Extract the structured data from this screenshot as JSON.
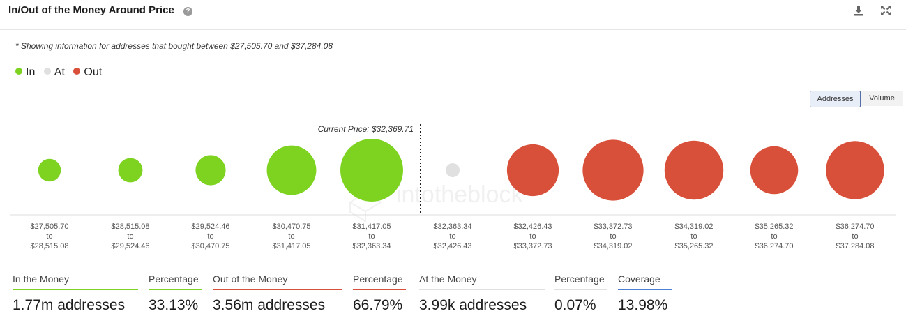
{
  "header": {
    "title": "In/Out of the Money Around Price",
    "help_icon": "question-circle-icon",
    "download_icon": "download-icon",
    "expand_icon": "expand-icon"
  },
  "note": "* Showing information for addresses that bought between $27,505.70 and $37,284.08",
  "legend": [
    {
      "label": "In",
      "color": "#7ed321"
    },
    {
      "label": "At",
      "color": "#e0e0e0"
    },
    {
      "label": "Out",
      "color": "#d9503a"
    }
  ],
  "toggle": {
    "addresses_label": "Addresses",
    "volume_label": "Volume",
    "selected": "Addresses"
  },
  "chart_data": {
    "type": "bubble",
    "current_price_label": "Current Price: $32,369.71",
    "current_price": 32369.71,
    "watermark": "intotheblock",
    "size_measure": "addresses (relative bubble size, estimated)",
    "buckets": [
      {
        "from": "$27,505.70",
        "to": "$28,515.08",
        "status": "In",
        "size": 0.13
      },
      {
        "from": "$28,515.08",
        "to": "$29,524.46",
        "status": "In",
        "size": 0.15
      },
      {
        "from": "$29,524.46",
        "to": "$30,470.75",
        "status": "In",
        "size": 0.23
      },
      {
        "from": "$30,470.75",
        "to": "$31,417.05",
        "status": "In",
        "size": 0.62
      },
      {
        "from": "$31,417.05",
        "to": "$32,363.34",
        "status": "In",
        "size": 1.0
      },
      {
        "from": "$32,363.34",
        "to": "$32,426.43",
        "status": "At",
        "size": 0.04
      },
      {
        "from": "$32,426.43",
        "to": "$33,372.73",
        "status": "Out",
        "size": 0.68
      },
      {
        "from": "$33,372.73",
        "to": "$34,319.02",
        "status": "Out",
        "size": 0.94
      },
      {
        "from": "$34,319.02",
        "to": "$35,265.32",
        "status": "Out",
        "size": 0.88
      },
      {
        "from": "$35,265.32",
        "to": "$36,274.70",
        "status": "Out",
        "size": 0.58
      },
      {
        "from": "$36,274.70",
        "to": "$37,284.08",
        "status": "Out",
        "size": 0.86
      }
    ],
    "range_connector": "to"
  },
  "stats": [
    {
      "label": "In the Money",
      "value": "1.77m addresses",
      "color": "#7ed321"
    },
    {
      "label": "Percentage",
      "value": "33.13%",
      "color": "#7ed321"
    },
    {
      "label": "Out of the Money",
      "value": "3.56m addresses",
      "color": "#d9503a"
    },
    {
      "label": "Percentage",
      "value": "66.79%",
      "color": "#d9503a"
    },
    {
      "label": "At the Money",
      "value": "3.99k addresses",
      "color": "#e0e0e0"
    },
    {
      "label": "Percentage",
      "value": "0.07%",
      "color": "#e0e0e0"
    },
    {
      "label": "Coverage",
      "value": "13.98%",
      "color": "#4a7fd4"
    }
  ]
}
